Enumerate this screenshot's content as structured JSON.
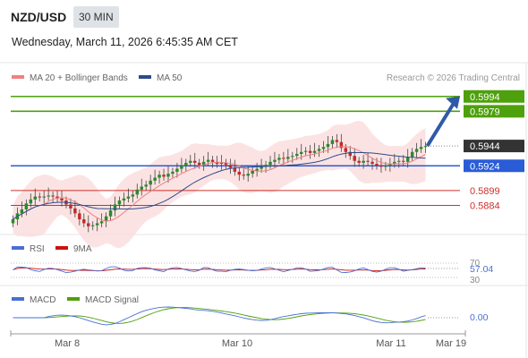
{
  "header": {
    "pair": "NZD/USD",
    "timeframe": "30 MIN",
    "datetime": "Wednesday, March 11, 2026 6:45:35 AM CET"
  },
  "price_panel": {
    "legend": [
      {
        "label": "MA 20 + Bollinger Bands",
        "color": "#f08080"
      },
      {
        "label": "MA 50",
        "color": "#2b4c8c"
      }
    ],
    "credit": "Research © 2026 Trading Central",
    "levels": [
      {
        "value": "0.5994",
        "kind": "resistance",
        "color": "#4ea00c"
      },
      {
        "value": "0.5979",
        "kind": "resistance",
        "color": "#4ea00c"
      },
      {
        "value": "0.5944",
        "kind": "last",
        "color": "#333333"
      },
      {
        "value": "0.5924",
        "kind": "pivot",
        "color": "#2a5cd6"
      },
      {
        "value": "0.5899",
        "kind": "support",
        "color": "#d0302a"
      },
      {
        "value": "0.5884",
        "kind": "support",
        "color": "#d0302a"
      }
    ]
  },
  "rsi_panel": {
    "legend": [
      {
        "label": "RSI",
        "color": "#4a6fd4"
      },
      {
        "label": "9MA",
        "color": "#cc1111"
      }
    ],
    "ticks": [
      "70",
      "30"
    ],
    "value": "57.04"
  },
  "macd_panel": {
    "legend": [
      {
        "label": "MACD",
        "color": "#4a6fd4"
      },
      {
        "label": "MACD Signal",
        "color": "#4ea00c"
      }
    ],
    "value": "0.00"
  },
  "x_axis": {
    "labels": [
      "Mar 8",
      "Mar 10",
      "Mar 11",
      "Mar 19"
    ]
  },
  "chart_data": {
    "type": "candlestick",
    "title": "NZD/USD",
    "timeframe": "30 MIN",
    "ylim": [
      0.5861,
      0.6001
    ],
    "x_labels": [
      "Mar 8",
      "Mar 10",
      "Mar 11",
      "Mar 19"
    ],
    "closes": [
      0.587,
      0.5876,
      0.588,
      0.5886,
      0.589,
      0.5893,
      0.5892,
      0.5893,
      0.5894,
      0.5893,
      0.5891,
      0.5889,
      0.5885,
      0.5881,
      0.5876,
      0.587,
      0.5866,
      0.5863,
      0.5864,
      0.5866,
      0.5868,
      0.5873,
      0.5879,
      0.5885,
      0.5889,
      0.5891,
      0.5893,
      0.5895,
      0.59,
      0.5903,
      0.5905,
      0.5909,
      0.5912,
      0.5915,
      0.5913,
      0.5916,
      0.5918,
      0.5921,
      0.5924,
      0.5927,
      0.5929,
      0.5927,
      0.5925,
      0.5928,
      0.593,
      0.5928,
      0.5926,
      0.5927,
      0.5925,
      0.5922,
      0.5918,
      0.5915,
      0.5914,
      0.5916,
      0.5919,
      0.5921,
      0.5923,
      0.5925,
      0.5928,
      0.593,
      0.5932,
      0.5931,
      0.5933,
      0.5934,
      0.5936,
      0.5938,
      0.5939,
      0.5937,
      0.5939,
      0.5941,
      0.5943,
      0.5946,
      0.595,
      0.5948,
      0.5942,
      0.5938,
      0.5934,
      0.5929,
      0.5927,
      0.5929,
      0.5928,
      0.5926,
      0.5924,
      0.5923,
      0.5924,
      0.5926,
      0.5928,
      0.5929,
      0.5928,
      0.5933,
      0.5938,
      0.5941,
      0.5943,
      0.5944
    ],
    "resistance": [
      0.5994,
      0.5979
    ],
    "last": 0.5944,
    "pivot": 0.5924,
    "support": [
      0.5899,
      0.5884
    ],
    "rsi": {
      "value": 57.04,
      "levels": [
        70,
        30
      ]
    },
    "macd": {
      "value": 0.0
    }
  }
}
